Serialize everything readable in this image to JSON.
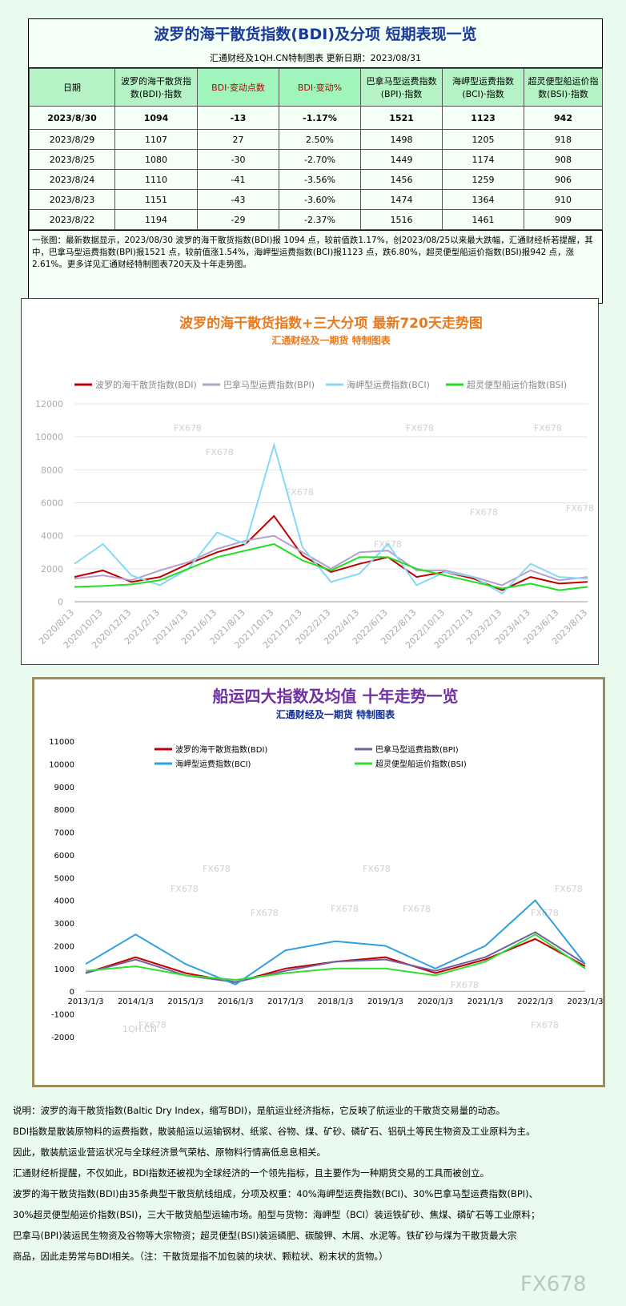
{
  "header": {
    "title": "波罗的海干散货指数(BDI)及分项 短期表现一览",
    "subtitle": "汇通财经及1QH.CN特制图表    更新日期：2023/08/31"
  },
  "table": {
    "columns": [
      "日期",
      "波罗的海干散货指数(BDI)·指数",
      "BDI·变动点数",
      "BDI·变动%",
      "巴拿马型运费指数(BPI)·指数",
      "海岬型运费指数(BCI)·指数",
      "超灵便型船运价指数(BSI)·指数"
    ],
    "rows": [
      [
        "2023/8/30",
        "1094",
        "-13",
        "-1.17%",
        "1521",
        "1123",
        "942"
      ],
      [
        "2023/8/29",
        "1107",
        "27",
        "2.50%",
        "1498",
        "1205",
        "918"
      ],
      [
        "2023/8/25",
        "1080",
        "-30",
        "-2.70%",
        "1449",
        "1174",
        "908"
      ],
      [
        "2023/8/24",
        "1110",
        "-41",
        "-3.56%",
        "1456",
        "1259",
        "906"
      ],
      [
        "2023/8/23",
        "1151",
        "-43",
        "-3.60%",
        "1474",
        "1364",
        "910"
      ],
      [
        "2023/8/22",
        "1194",
        "-29",
        "-2.37%",
        "1516",
        "1461",
        "909"
      ]
    ]
  },
  "summary": "一张图：最新数据显示，2023/08/30 波罗的海干散货指数(BDI)报 1094 点，较前值跌1.17%，创2023/08/25以来最大跌幅，汇通财经析若提醒，其中，巴拿马型运费指数(BPI)报1521 点，较前值涨1.54%，海岬型运费指数(BCI)报1123 点，跌6.80%，超灵便型船运价指数(BSI)报942 点，涨2.61%。更多详见汇通财经特制图表720天及十年走势图。",
  "chart_data": [
    {
      "type": "line",
      "title": "波罗的海干散货指数+三大分项  最新720天走势图",
      "subtitle": "汇通财经及一期货  特制图表",
      "watermarks": [
        "FX678"
      ],
      "categories": [
        "2020/8/13",
        "2020/10/13",
        "2020/12/13",
        "2021/2/13",
        "2021/4/13",
        "2021/6/13",
        "2021/8/13",
        "2021/10/13",
        "2021/12/13",
        "2022/2/13",
        "2022/4/13",
        "2022/6/13",
        "2022/8/13",
        "2022/10/13",
        "2022/12/13",
        "2023/2/13",
        "2023/4/13",
        "2023/6/13",
        "2023/8/13"
      ],
      "series": [
        {
          "name": "波罗的海干散货指数(BDI)",
          "color": "#c00000",
          "values": [
            1500,
            1900,
            1200,
            1500,
            2300,
            3000,
            3500,
            5200,
            2800,
            1800,
            2300,
            2700,
            1500,
            1800,
            1400,
            700,
            1500,
            1100,
            1200
          ]
        },
        {
          "name": "巴拿马型运费指数(BPI)",
          "color": "#b4a0cc",
          "values": [
            1400,
            1600,
            1300,
            1900,
            2400,
            3200,
            3700,
            4000,
            3000,
            2000,
            3000,
            3100,
            1900,
            1900,
            1500,
            1000,
            1900,
            1300,
            1500
          ]
        },
        {
          "name": "海岬型运费指数(BCI)",
          "color": "#86d8f7",
          "values": [
            2300,
            3500,
            1600,
            1000,
            2000,
            4200,
            3500,
            9500,
            3300,
            1200,
            1700,
            3500,
            1000,
            1800,
            1500,
            500,
            2300,
            1500,
            1400
          ]
        },
        {
          "name": "超灵便型船运价指数(BSI)",
          "color": "#22dd22",
          "values": [
            900,
            950,
            1050,
            1300,
            2000,
            2700,
            3100,
            3500,
            2500,
            1900,
            2700,
            2700,
            2000,
            1600,
            1200,
            800,
            1100,
            700,
            900
          ]
        }
      ],
      "ylim": [
        0,
        12000
      ],
      "yticks": [
        0,
        2000,
        4000,
        6000,
        8000,
        10000,
        12000
      ],
      "grid": true
    },
    {
      "type": "line",
      "title": "船运四大指数及均值 十年走势一览",
      "subtitle": "汇通财经及一期货 特制图表",
      "watermarks": [
        "FX678",
        "1QH.CN"
      ],
      "categories": [
        "2013/1/3",
        "2014/1/3",
        "2015/1/3",
        "2016/1/3",
        "2017/1/3",
        "2018/1/3",
        "2019/1/3",
        "2020/1/3",
        "2021/1/3",
        "2022/1/3",
        "2023/1/3"
      ],
      "series": [
        {
          "name": "波罗的海干散货指数(BDI)",
          "color": "#c00000",
          "values": [
            800,
            1500,
            800,
            400,
            1000,
            1300,
            1500,
            800,
            1400,
            2300,
            1100
          ]
        },
        {
          "name": "巴拿马型运费指数(BPI)",
          "color": "#7060a0",
          "values": [
            800,
            1400,
            700,
            400,
            900,
            1300,
            1400,
            900,
            1500,
            2600,
            1200
          ]
        },
        {
          "name": "海岬型运费指数(BCI)",
          "color": "#30a0e0",
          "values": [
            1200,
            2500,
            1200,
            300,
            1800,
            2200,
            2000,
            1000,
            2000,
            4000,
            1200
          ]
        },
        {
          "name": "超灵便型船运价指数(BSI)",
          "color": "#33dd33",
          "values": [
            900,
            1100,
            700,
            500,
            800,
            1000,
            1000,
            700,
            1300,
            2500,
            1000
          ]
        }
      ],
      "ylim": [
        -2000,
        11000
      ],
      "yticks": [
        -2000,
        -1000,
        0,
        1000,
        2000,
        3000,
        4000,
        5000,
        6000,
        7000,
        8000,
        9000,
        10000,
        11000
      ],
      "grid": false
    }
  ],
  "notes": [
    "说明：波罗的海干散货指数(Baltic Dry Index，缩写BDI)，是航运业经济指标，它反映了航运业的干散货交易量的动态。",
    "BDI指数是散装原物料的运费指数，散装船运以运输钢材、纸浆、谷物、煤、矿砂、磷矿石、铝矾土等民生物资及工业原料为主。",
    "因此，散装航运业营运状况与全球经济景气荣枯、原物料行情高低息息相关。",
    "汇通财经析提醒，不仅如此，BDI指数还被视为全球经济的一个领先指标，且主要作为一种期货交易的工具而被创立。",
    "波罗的海干散货指数(BDI)由35条典型干散货航线组成，分项及权重：40%海岬型运费指数(BCI)、30%巴拿马型运费指数(BPI)、",
    "30%超灵便型船运价指数(BSI)，三大干散货船型运输市场。船型与货物：海岬型（BCI）装运铁矿砂、焦煤、磷矿石等工业原料；",
    "巴拿马(BPI)装运民生物资及谷物等大宗物资；超灵便型(BSI)装运磷肥、碳酸钾、木屑、水泥等。铁矿砂与煤为干散货最大宗",
    "商品，因此走势常与BDI相关。（注：干散货是指不加包装的块状、颗粒状、粉末状的货物。）"
  ],
  "footer": "FX678"
}
